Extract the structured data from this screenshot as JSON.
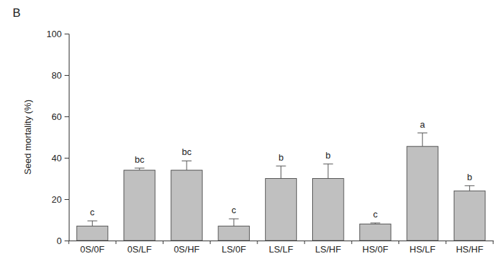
{
  "chart_data": {
    "type": "bar",
    "title": "B",
    "y_label": "Seed mortality (%)",
    "categories": [
      "0S/0F",
      "0S/LF",
      "0S/HF",
      "LS/0F",
      "LS/LF",
      "LS/HF",
      "HS/0F",
      "HS/LF",
      "HS/HF"
    ],
    "values": [
      7,
      34,
      34,
      7,
      30,
      30,
      8,
      45.5,
      24
    ],
    "errors": [
      2.5,
      1,
      4.5,
      3.5,
      6,
      7,
      0.5,
      6.5,
      2.5
    ],
    "annotations": [
      "c",
      "bc",
      "bc",
      "c",
      "b",
      "b",
      "c",
      "a",
      "b"
    ],
    "color": "#c0c0c0",
    "ylim": [
      0,
      100
    ],
    "yticks": [
      0,
      20,
      40,
      60,
      80,
      100
    ],
    "grid": false
  }
}
